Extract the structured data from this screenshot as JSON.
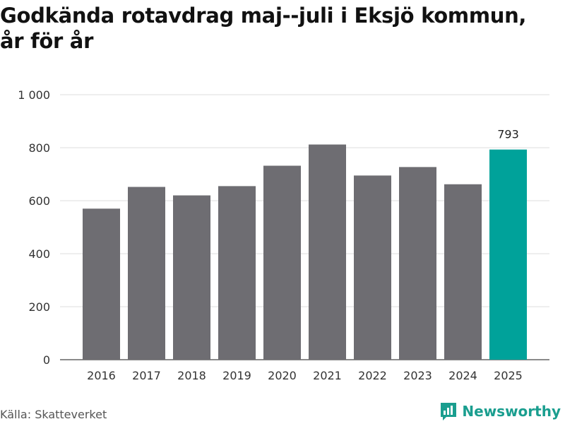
{
  "title_lines": [
    "Godkända rotavdrag maj--juli i Eksjö kommun,",
    "år för år"
  ],
  "source": "Källa: Skatteverket",
  "brand": {
    "name": "Newsworthy",
    "icon": "newsworthy-logo-icon",
    "color": "#1a9e8f"
  },
  "colors": {
    "bar": "#6e6d72",
    "highlight": "#00a29a",
    "grid": "#dddddd",
    "axis_text": "#333333"
  },
  "chart_data": {
    "type": "bar",
    "categories": [
      "2016",
      "2017",
      "2018",
      "2019",
      "2020",
      "2021",
      "2022",
      "2023",
      "2024",
      "2025"
    ],
    "values": [
      570,
      652,
      620,
      655,
      732,
      812,
      695,
      727,
      662,
      793
    ],
    "highlight_index": 9,
    "data_labels": {
      "9": "793"
    },
    "y_ticks": [
      0,
      200,
      400,
      600,
      800,
      1000
    ],
    "y_tick_labels": [
      "0",
      "200",
      "400",
      "600",
      "800",
      "1 000"
    ],
    "ylim": [
      0,
      1000
    ],
    "xlabel": "",
    "ylabel": "",
    "grid": true
  }
}
